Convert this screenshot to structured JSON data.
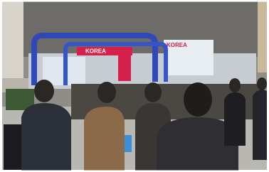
{
  "signs": [
    {
      "text": "KOREA"
    },
    {
      "text": "KOREA"
    }
  ]
}
